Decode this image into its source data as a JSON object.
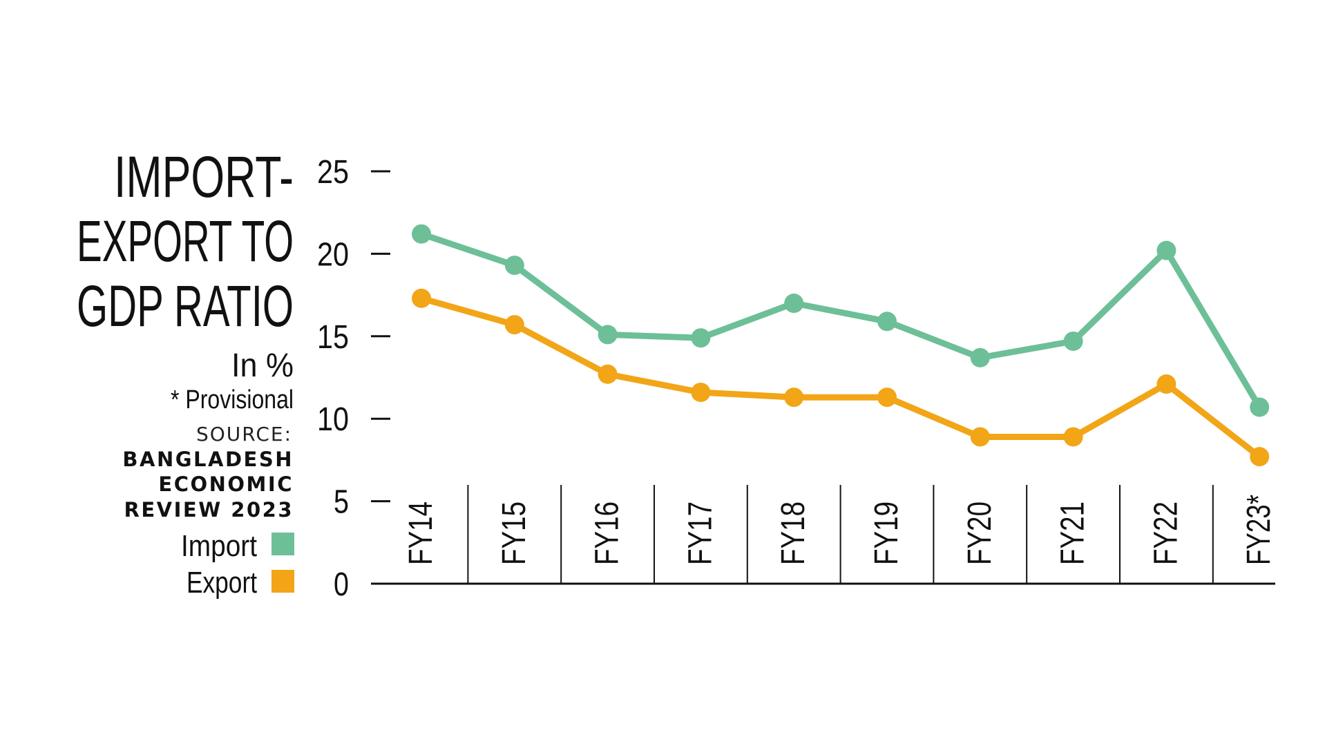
{
  "title_lines": [
    "IMPORT-",
    "EXPORT TO",
    "GDP RATIO"
  ],
  "unit_note": "In %",
  "provisional_note": "* Provisional",
  "source_label": "SOURCE:",
  "source_lines": [
    "BANGLADESH",
    "ECONOMIC",
    "REVIEW 2023"
  ],
  "colors": {
    "import": "#6dbf98",
    "export": "#f2a516",
    "axis": "#111111"
  },
  "chart_data": {
    "type": "line",
    "title": "IMPORT-EXPORT TO GDP RATIO",
    "xlabel": "",
    "ylabel": "",
    "categories": [
      "FY14",
      "FY15",
      "FY16",
      "FY17",
      "FY18",
      "FY19",
      "FY20",
      "FY21",
      "FY22",
      "FY23*"
    ],
    "y_ticks": [
      0,
      5,
      10,
      15,
      20,
      25
    ],
    "ylim": [
      0,
      25
    ],
    "grid": false,
    "legend_position": "left",
    "series": [
      {
        "name": "Import",
        "color": "#6dbf98",
        "values": [
          21.2,
          19.3,
          15.1,
          14.9,
          17.0,
          15.9,
          13.7,
          14.7,
          20.2,
          10.7
        ]
      },
      {
        "name": "Export",
        "color": "#f2a516",
        "values": [
          17.3,
          15.7,
          12.7,
          11.6,
          11.3,
          11.3,
          8.9,
          8.9,
          12.1,
          7.7
        ]
      }
    ]
  }
}
